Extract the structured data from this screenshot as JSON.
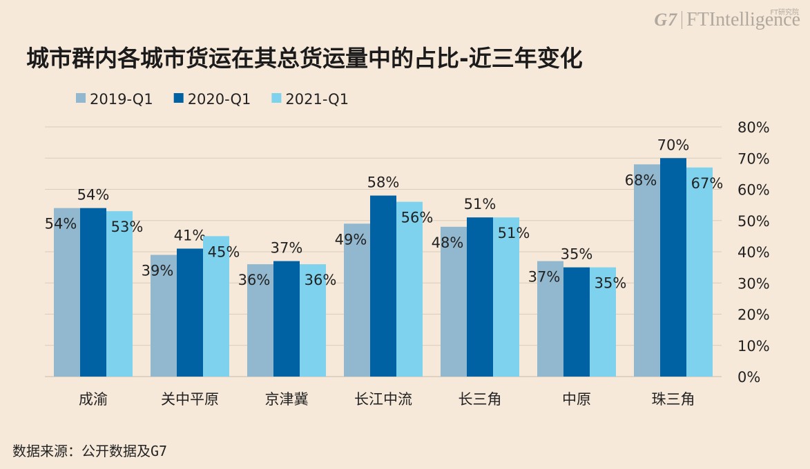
{
  "brand": {
    "g7": "G7",
    "ft": "FTIntelligence",
    "ft_sub": "FT研究院"
  },
  "title": "城市群内各城市货运在其总货运量中的占比-近三年变化",
  "source": "数据来源：公开数据及G7",
  "colors": {
    "2019-Q1": "#91b8cf",
    "2020-Q1": "#0061a3",
    "2021-Q1": "#7fd2ee",
    "grid": "#d8ccbd",
    "background": "#f6e9da"
  },
  "chart_data": {
    "type": "bar",
    "categories": [
      "成渝",
      "关中平原",
      "京津冀",
      "长江中流",
      "长三角",
      "中原",
      "珠三角"
    ],
    "series": [
      {
        "name": "2019-Q1",
        "values": [
          54,
          39,
          36,
          49,
          48,
          37,
          68
        ],
        "labels": [
          "54%",
          "39%",
          "36%",
          "49%",
          "48%",
          "37%",
          "68%"
        ]
      },
      {
        "name": "2020-Q1",
        "values": [
          54,
          41,
          37,
          58,
          51,
          35,
          70
        ],
        "labels": [
          "54%",
          "41%",
          "37%",
          "58%",
          "51%",
          "35%",
          "70%"
        ]
      },
      {
        "name": "2021-Q1",
        "values": [
          53,
          45,
          36,
          56,
          51,
          35,
          67
        ],
        "labels": [
          "53%",
          "45%",
          "36%",
          "56%",
          "51%",
          "35%",
          "67%"
        ]
      }
    ],
    "ylim": [
      0,
      80
    ],
    "y_ticks": [
      "0%",
      "10%",
      "20%",
      "30%",
      "40%",
      "50%",
      "60%",
      "70%",
      "80%"
    ],
    "y_axis_side": "right",
    "grid": true,
    "legend_position": "top-left"
  }
}
